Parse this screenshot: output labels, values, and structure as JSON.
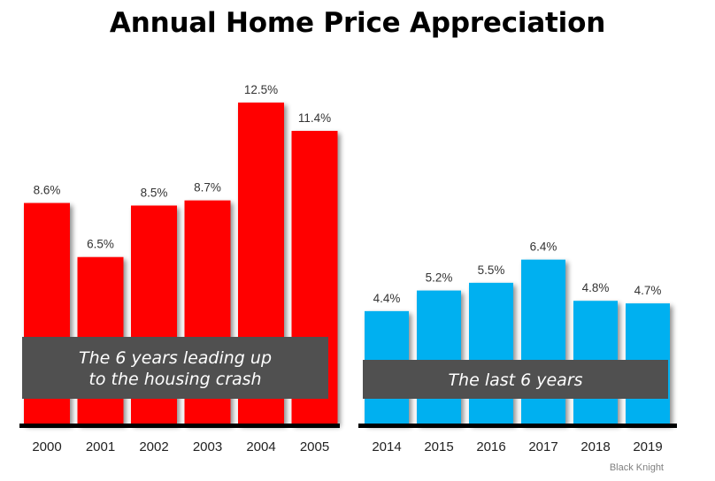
{
  "chart_data": {
    "type": "bar",
    "title": "Annual Home Price Appreciation",
    "panels": [
      {
        "name": "pre-crash",
        "color": "#ff0000",
        "categories": [
          "2000",
          "2001",
          "2002",
          "2003",
          "2004",
          "2005"
        ],
        "values": [
          8.6,
          6.5,
          8.5,
          8.7,
          12.5,
          11.4
        ],
        "value_labels": [
          "8.6%",
          "6.5%",
          "8.5%",
          "8.7%",
          "12.5%",
          "11.4%"
        ],
        "annotation": [
          "The 6 years leading up",
          "to the housing crash"
        ]
      },
      {
        "name": "recent",
        "color": "#00b0f0",
        "categories": [
          "2014",
          "2015",
          "2016",
          "2017",
          "2018",
          "2019"
        ],
        "values": [
          4.4,
          5.2,
          5.5,
          6.4,
          4.8,
          4.7
        ],
        "value_labels": [
          "4.4%",
          "5.2%",
          "5.5%",
          "6.4%",
          "4.8%",
          "4.7%"
        ],
        "annotation": [
          "The last 6 years"
        ]
      }
    ],
    "ylim": [
      0,
      12.5
    ],
    "xlabel": "",
    "ylabel": "",
    "grid": false,
    "legend": "none"
  },
  "source": "Black Knight"
}
